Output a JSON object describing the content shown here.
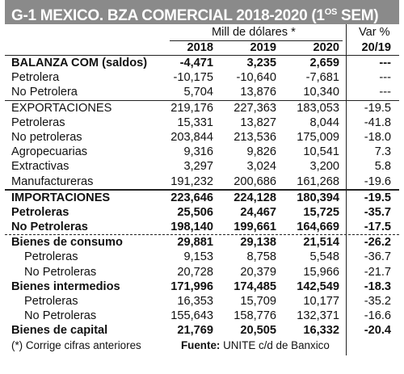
{
  "title": "G-1  MEXICO. BZA COMERCIAL 2018-2020 (1",
  "title_sup": "OS",
  "title_end": " SEM)",
  "units": "Mill de dólares *",
  "var_header": "Var %",
  "years": [
    "2018",
    "2019",
    "2020"
  ],
  "var_year": "20/19",
  "rows": [
    {
      "label": "BALANZA COM (saldos)",
      "v": [
        "-4,471",
        "3,235",
        "2,659",
        "---"
      ]
    },
    {
      "label": "Petrolera",
      "v": [
        "-10,175",
        "-10,640",
        "-7,681",
        "---"
      ]
    },
    {
      "label": "No Petrolera",
      "v": [
        "5,704",
        "13,876",
        "10,340",
        "---"
      ]
    },
    {
      "label": "EXPORTACIONES",
      "v": [
        "219,176",
        "227,363",
        "183,053",
        "-19.5"
      ]
    },
    {
      "label": "Petroleras",
      "v": [
        "15,331",
        "13,827",
        "8,044",
        "-41.8"
      ]
    },
    {
      "label": "No petroleras",
      "v": [
        "203,844",
        "213,536",
        "175,009",
        "-18.0"
      ]
    },
    {
      "label": "Agropecuarias",
      "v": [
        "9,316",
        "9,826",
        "10,541",
        "7.3"
      ]
    },
    {
      "label": "Extractivas",
      "v": [
        "3,297",
        "3,024",
        "3,200",
        "5.8"
      ]
    },
    {
      "label": "Manufactureras",
      "v": [
        "191,232",
        "200,686",
        "161,268",
        "-19.6"
      ]
    },
    {
      "label": "IMPORTACIONES",
      "v": [
        "223,646",
        "224,128",
        "180,394",
        "-19.5"
      ]
    },
    {
      "label": "Petroleras",
      "v": [
        "25,506",
        "24,467",
        "15,725",
        "-35.7"
      ]
    },
    {
      "label": "No Petroleras",
      "v": [
        "198,140",
        "199,661",
        "164,669",
        "-17.5"
      ]
    },
    {
      "label": "Bienes de consumo",
      "v": [
        "29,881",
        "29,138",
        "21,514",
        "-26.2"
      ]
    },
    {
      "label": "Petroleras",
      "v": [
        "9,153",
        "8,758",
        "5,548",
        "-36.7"
      ]
    },
    {
      "label": "No Petroleras",
      "v": [
        "20,728",
        "20,379",
        "15,966",
        "-21.7"
      ]
    },
    {
      "label": "Bienes intermedios",
      "v": [
        "171,996",
        "174,485",
        "142,549",
        "-18.3"
      ]
    },
    {
      "label": "Petroleras",
      "v": [
        "16,353",
        "15,709",
        "10,177",
        "-35.2"
      ]
    },
    {
      "label": "No Petroleras",
      "v": [
        "155,643",
        "158,776",
        "132,371",
        "-16.6"
      ]
    },
    {
      "label": "Bienes de capital",
      "v": [
        "21,769",
        "20,505",
        "16,332",
        "-20.4"
      ]
    }
  ],
  "footnote": "(*) Corrige cifras anteriores",
  "source_label": "Fuente:",
  "source_text": " UNITE c/d de Banxico"
}
